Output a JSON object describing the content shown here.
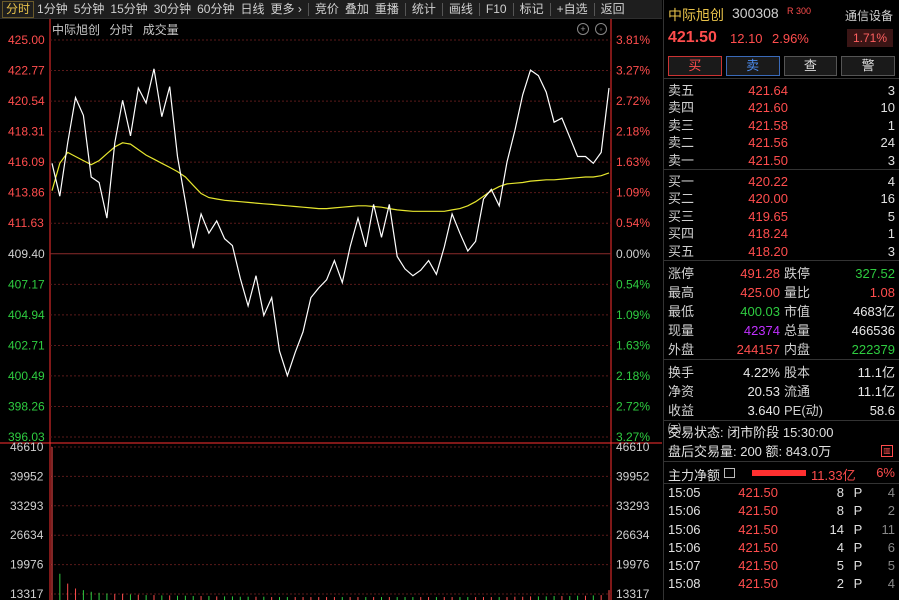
{
  "toolbar": {
    "items": [
      "分时",
      "1分钟",
      "5分钟",
      "15分钟",
      "30分钟",
      "60分钟",
      "日线",
      "更多 ›",
      "竞价",
      "叠加",
      "重播",
      "统计",
      "画线",
      "F10",
      "标记",
      "+自选",
      "返回"
    ]
  },
  "chart": {
    "name": "中际旭创",
    "mode": "分时",
    "sub": "成交量",
    "price_labels": [
      "425.00",
      "422.77",
      "420.54",
      "418.31",
      "416.09",
      "413.86",
      "411.63",
      "409.40",
      "407.17",
      "404.94",
      "402.71",
      "400.49",
      "398.26",
      "396.03"
    ],
    "pct_labels": [
      "3.81%",
      "3.27%",
      "2.72%",
      "2.18%",
      "1.63%",
      "1.09%",
      "0.54%",
      "0.00%",
      "0.54%",
      "1.09%",
      "1.63%",
      "2.18%",
      "2.72%",
      "3.27%"
    ],
    "vol_labels": [
      "46610",
      "39952",
      "33293",
      "26634",
      "19976",
      "13317"
    ],
    "colors": {
      "up": "#ff4d4d",
      "down": "#2ecc40",
      "price_line": "#ffffff",
      "avg_line": "#e6e62e",
      "grid": "#5a1a1a",
      "axis": "#ff3030"
    }
  },
  "chart_data": {
    "type": "line",
    "title": "中际旭创",
    "ylim": [
      396.03,
      425.0
    ],
    "prev_close": 409.4,
    "series": [
      {
        "name": "",
        "values": [
          416.0,
          413.6,
          417.5,
          420.8,
          419.5,
          415.0,
          414.6,
          412.0,
          417.5,
          420.6,
          418.0,
          421.5,
          420.4,
          422.9,
          419.4,
          421.6,
          416.5,
          413.2,
          409.8,
          412.3,
          410.9,
          411.8,
          410.5,
          410.0,
          407.6,
          405.6,
          407.8,
          404.9,
          406.2,
          402.3,
          400.5,
          402.2,
          403.7,
          406.2,
          406.9,
          407.5,
          408.9,
          407.3,
          409.9,
          412.0,
          409.9,
          413.0,
          410.6,
          413.0,
          409.2,
          408.3,
          407.8,
          408.2,
          408.9,
          407.9,
          409.9,
          412.3,
          410.9,
          409.6,
          410.3,
          413.4,
          414.1,
          412.9,
          416.1,
          418.4,
          421.0,
          422.8,
          422.4,
          421.2,
          419.0,
          419.3,
          417.9,
          416.5,
          416.5,
          416.0,
          416.8,
          421.5
        ]
      },
      {
        "name": "",
        "values": [
          414.0,
          416.0,
          416.8,
          416.5,
          416.2,
          415.9,
          416.2,
          416.7,
          417.2,
          417.5,
          417.4,
          417.0,
          416.6,
          416.3,
          416.0,
          415.7,
          415.4,
          415.0,
          414.4,
          413.8,
          413.5,
          413.4,
          413.3,
          413.25,
          413.2,
          413.15,
          413.1,
          413.05,
          413.0,
          412.95,
          412.9,
          412.85,
          412.8,
          412.75,
          412.7,
          412.7,
          412.75,
          412.8,
          412.85,
          412.9,
          412.9,
          412.85,
          412.8,
          412.7,
          412.6,
          412.55,
          412.5,
          412.5,
          412.5,
          412.5,
          412.5,
          412.6,
          412.7,
          412.9,
          413.2,
          413.6,
          414.0,
          414.3,
          414.5,
          414.55,
          414.6,
          414.7,
          414.75,
          414.8,
          414.8,
          414.85,
          414.9,
          414.95,
          415.0,
          415.0,
          415.1,
          415.3
        ]
      }
    ],
    "volume": [
      46610,
      8000,
      5000,
      3500,
      3000,
      2500,
      2200,
      2000,
      1800,
      1900,
      1700,
      1600,
      1500,
      1500,
      1400,
      1400,
      1300,
      1300,
      1200,
      1200,
      1200,
      1100,
      1100,
      1100,
      1000,
      1000,
      1000,
      1000,
      900,
      900,
      900,
      900,
      900,
      900,
      900,
      900,
      900,
      900,
      900,
      900,
      900,
      900,
      900,
      900,
      900,
      900,
      900,
      900,
      900,
      900,
      900,
      900,
      900,
      900,
      900,
      900,
      900,
      900,
      900,
      1000,
      1000,
      1100,
      1100,
      1100,
      1200,
      1200,
      1200,
      1300,
      1300,
      1400,
      1500,
      3000
    ],
    "vlim": [
      0,
      46610
    ]
  },
  "stock": {
    "name": "中际旭创",
    "code": "300308",
    "badge": "R 300",
    "notify": "通信设备",
    "price": "421.50",
    "change": "12.10",
    "change_pct": "2.96%",
    "box_pct": "1.71%"
  },
  "buttons": {
    "buy": "买",
    "sell": "卖",
    "query": "查",
    "alert": "警"
  },
  "asks": [
    {
      "label": "卖五",
      "price": "421.64",
      "vol": "3"
    },
    {
      "label": "卖四",
      "price": "421.60",
      "vol": "10"
    },
    {
      "label": "卖三",
      "price": "421.58",
      "vol": "1"
    },
    {
      "label": "卖二",
      "price": "421.56",
      "vol": "24"
    },
    {
      "label": "卖一",
      "price": "421.50",
      "vol": "3"
    }
  ],
  "bids": [
    {
      "label": "买一",
      "price": "420.22",
      "vol": "4"
    },
    {
      "label": "买二",
      "price": "420.00",
      "vol": "16"
    },
    {
      "label": "买三",
      "price": "419.65",
      "vol": "5"
    },
    {
      "label": "买四",
      "price": "418.24",
      "vol": "1"
    },
    {
      "label": "买五",
      "price": "418.20",
      "vol": "3"
    }
  ],
  "stats1": [
    {
      "l1": "涨停",
      "v1": "491.28",
      "c1": "red",
      "l2": "跌停",
      "v2": "327.52",
      "c2": "green"
    },
    {
      "l1": "最高",
      "v1": "425.00",
      "c1": "red",
      "l2": "量比",
      "v2": "1.08",
      "c2": "red"
    },
    {
      "l1": "最低",
      "v1": "400.03",
      "c1": "green",
      "l2": "市值",
      "v2": "4683亿",
      "c2": "white"
    },
    {
      "l1": "现量",
      "v1": "42374",
      "c1": "purple",
      "l2": "总量",
      "v2": "466536",
      "c2": "white"
    },
    {
      "l1": "外盘",
      "v1": "244157",
      "c1": "red",
      "l2": "内盘",
      "v2": "222379",
      "c2": "green"
    }
  ],
  "stats2": [
    {
      "l1": "换手",
      "v1": "4.22%",
      "c1": "white",
      "l2": "股本",
      "v2": "11.1亿",
      "c2": "white"
    },
    {
      "l1": "净资",
      "v1": "20.53",
      "c1": "white",
      "l2": "流通",
      "v2": "11.1亿",
      "c2": "white"
    },
    {
      "l1": "收益㈢",
      "v1": "3.640",
      "c1": "white",
      "l2": "PE(动)",
      "v2": "58.6",
      "c2": "white"
    }
  ],
  "trade_status": "交易状态: 闭市阶段 15:30:00",
  "after_hours": "盘后交易量: 200  额: 843.0万",
  "flow": {
    "label": "主力净额",
    "value": "11.33亿",
    "pct": "6%",
    "bar_fraction": 0.06
  },
  "ticks": [
    {
      "time": "15:05",
      "price": "421.50",
      "vol": "8",
      "dir": "P",
      "n": "4"
    },
    {
      "time": "15:06",
      "price": "421.50",
      "vol": "8",
      "dir": "P",
      "n": "2"
    },
    {
      "time": "15:06",
      "price": "421.50",
      "vol": "14",
      "dir": "P",
      "n": "11"
    },
    {
      "time": "15:06",
      "price": "421.50",
      "vol": "4",
      "dir": "P",
      "n": "6"
    },
    {
      "time": "15:07",
      "price": "421.50",
      "vol": "5",
      "dir": "P",
      "n": "5"
    },
    {
      "time": "15:08",
      "price": "421.50",
      "vol": "2",
      "dir": "P",
      "n": "4"
    }
  ]
}
